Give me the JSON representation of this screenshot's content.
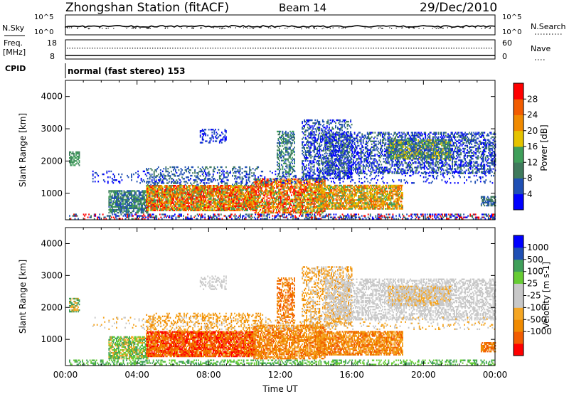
{
  "header": {
    "station": "Zhongshan Station (fitACF)",
    "beam": "Beam 14",
    "date": "29/Dec/2010"
  },
  "summary_panels": {
    "nsky": {
      "left_label": "N.Sky",
      "right_label": "N.Search",
      "left_ticks": [
        "10^5",
        "10^0"
      ],
      "right_ticks": [
        "10^5",
        "10^0"
      ]
    },
    "freq": {
      "left_label_line1": "Freq.",
      "left_label_line2": "[MHz]",
      "right_label": "Nave",
      "left_ticks": [
        "18",
        "8"
      ],
      "right_ticks": [
        "60",
        "0"
      ]
    },
    "cpid": {
      "label": "CPID",
      "text": "normal (fast stereo) 153"
    }
  },
  "colors": {
    "power": [
      "#0000ff",
      "#1f4fb4",
      "#3f7a5c",
      "#3f9f5a",
      "#e5c300",
      "#f08a00",
      "#f25c00",
      "#ff0000"
    ],
    "velocity": [
      "#ff0000",
      "#f25c00",
      "#f08a00",
      "#f5a623",
      "#c8c8c8",
      "#c8c8c8",
      "#66cc33",
      "#3f9f5a",
      "#1f4fb4",
      "#0000ff"
    ]
  },
  "chart_data": [
    {
      "type": "heatmap",
      "name": "power",
      "ylabel": "Slant Range [km]",
      "xlabel": "",
      "ylim": [
        180,
        4500
      ],
      "xlim": [
        0,
        24
      ],
      "y_ticks": [
        "1000",
        "2000",
        "3000",
        "4000"
      ],
      "x_ticks": [
        "00:00",
        "04:00",
        "08:00",
        "12:00",
        "16:00",
        "20:00",
        "00:00"
      ],
      "colorbar": {
        "label": "Power [dB]",
        "ticks": [
          "4",
          "8",
          "12",
          "16",
          "20",
          "24",
          "28"
        ],
        "range": [
          0,
          32
        ]
      }
    },
    {
      "type": "heatmap",
      "name": "velocity",
      "ylabel": "Slant Range [km]",
      "xlabel": "Time UT",
      "ylim": [
        180,
        4500
      ],
      "xlim": [
        0,
        24
      ],
      "y_ticks": [
        "1000",
        "2000",
        "3000",
        "4000"
      ],
      "x_ticks": [
        "00:00",
        "04:00",
        "08:00",
        "12:00",
        "16:00",
        "20:00",
        "00:00"
      ],
      "colorbar": {
        "label": "Velocity [m s-1]",
        "ticks": [
          "1000",
          "500",
          "100",
          "25",
          "-25",
          "-100",
          "-500",
          "-1000"
        ]
      }
    }
  ]
}
